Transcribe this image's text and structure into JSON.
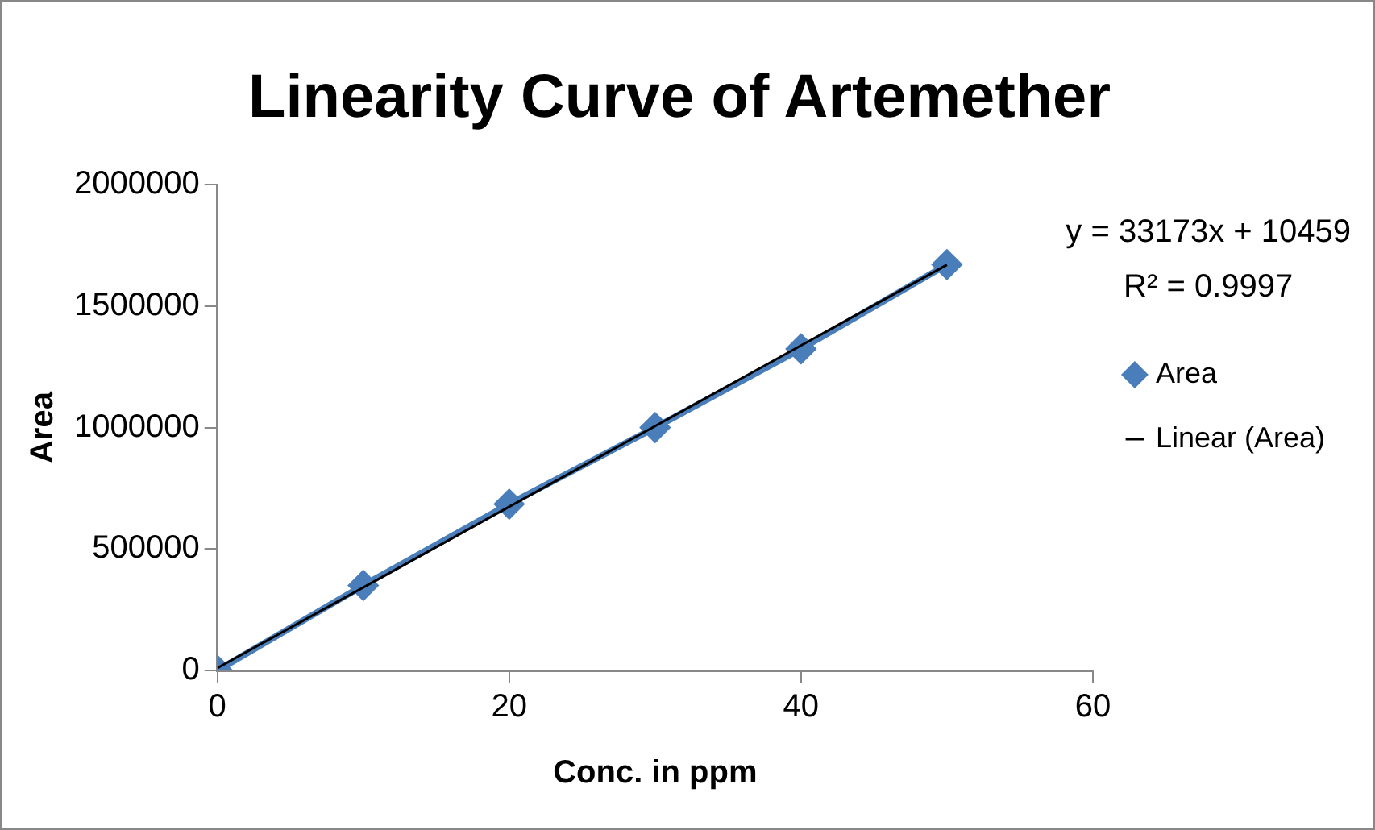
{
  "chart_data": {
    "type": "line",
    "title": "Linearity Curve of Artemether",
    "xlabel": "Conc. in ppm",
    "ylabel": "Area",
    "xlim": [
      0,
      60
    ],
    "xticks": [
      0,
      20,
      40,
      60
    ],
    "ylim": [
      0,
      2000000
    ],
    "yticks": [
      0,
      500000,
      1000000,
      1500000,
      2000000
    ],
    "series": [
      {
        "name": "Area",
        "type": "line",
        "color": "#4a7ebb",
        "marker": "diamond",
        "x": [
          0,
          10,
          20,
          30,
          40,
          50
        ],
        "values": [
          0,
          350000,
          685000,
          1000000,
          1324000,
          1671000
        ]
      },
      {
        "name": "Linear (Area)",
        "type": "line",
        "color": "#000000",
        "marker": "none",
        "x": [
          0,
          50
        ],
        "values": [
          10000,
          1670000
        ]
      }
    ],
    "annotations": [
      "y = 33173x + 10459",
      "R² = 0.9997"
    ],
    "grid": false,
    "legend": "right"
  }
}
